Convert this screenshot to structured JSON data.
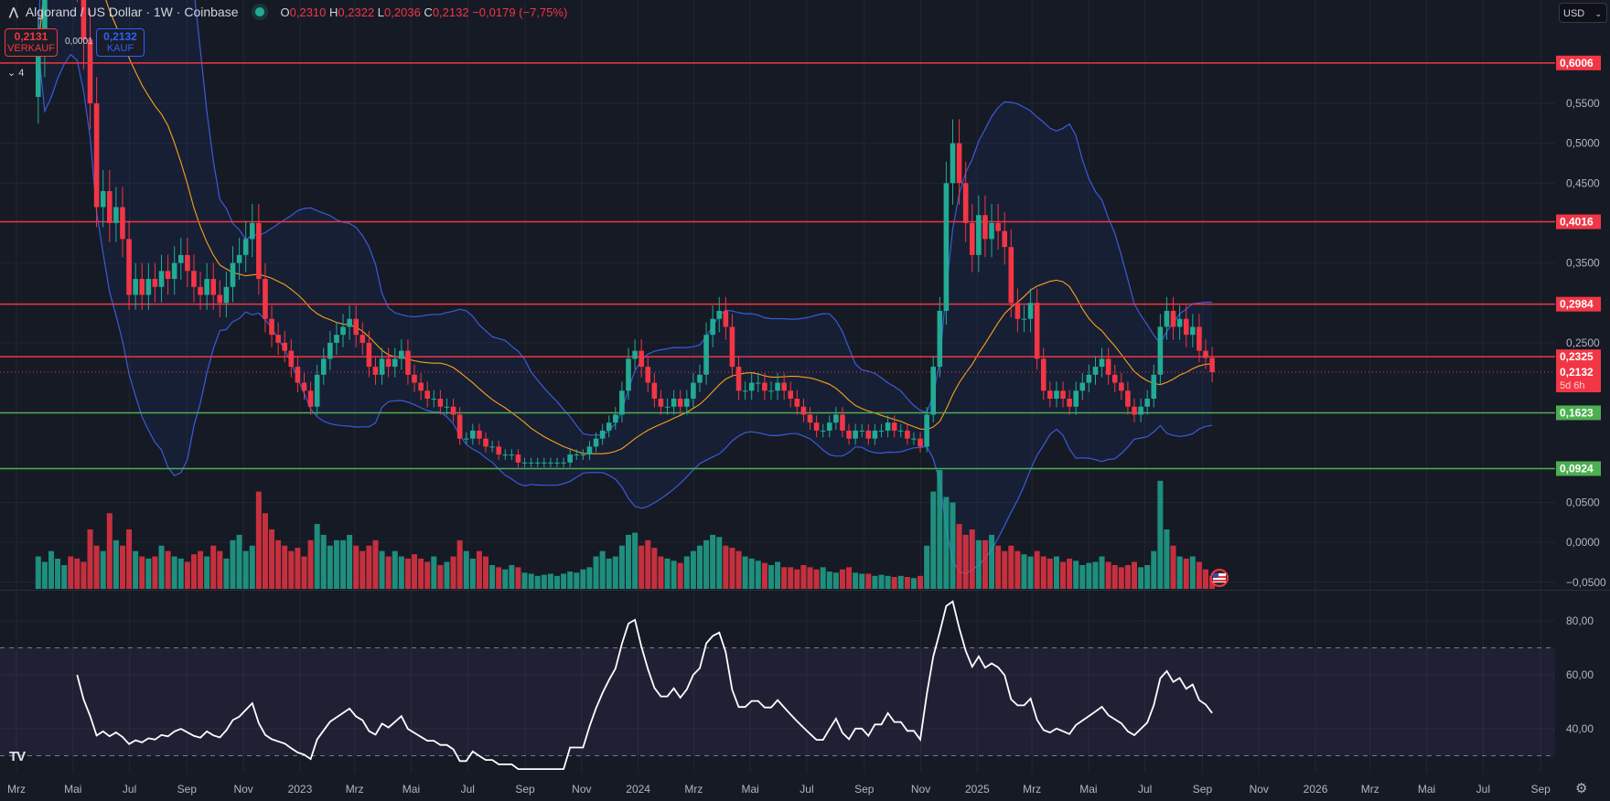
{
  "header": {
    "title": "Algorand / US Dollar · 1W · Coinbase",
    "logo_icon": "algorand-logo",
    "market_status": "open",
    "ohlc": {
      "o_label": "O",
      "o": "0,2310",
      "h_label": "H",
      "h": "0,2322",
      "l_label": "L",
      "l": "0,2036",
      "c_label": "C",
      "c": "0,2132",
      "change": "−0,0179 (−7,75%)"
    },
    "sell": {
      "value": "0,2131",
      "label": "VERKAUF"
    },
    "spread": "0,0001",
    "buy": {
      "value": "0,2132",
      "label": "KAUF"
    },
    "indicators_collapsed": "⌄ 4"
  },
  "currency_button": {
    "label": "USD",
    "chevron": "⌄"
  },
  "colors": {
    "background": "#161a25",
    "up": "#22ab94",
    "down": "#f23645",
    "resistance": "#f23645",
    "support": "#4caf50",
    "bollinger": "#3a5bd9",
    "sma": "#f7a21b",
    "rsi": "#ffffff"
  },
  "price_axis": {
    "ticks": [
      {
        "value": 0.55,
        "label": "0,5500"
      },
      {
        "value": 0.5,
        "label": "0,5000"
      },
      {
        "value": 0.45,
        "label": "0,4500"
      },
      {
        "value": 0.35,
        "label": "0,3500"
      },
      {
        "value": 0.25,
        "label": "0,2500"
      },
      {
        "value": 0.05,
        "label": "0,0500"
      },
      {
        "value": 0.0,
        "label": "0,0000"
      },
      {
        "value": -0.05,
        "label": "−0,0500"
      }
    ],
    "levels": [
      {
        "value": 0.6006,
        "label": "0,6006",
        "kind": "resistance"
      },
      {
        "value": 0.4016,
        "label": "0,4016",
        "kind": "resistance"
      },
      {
        "value": 0.2984,
        "label": "0,2984",
        "kind": "resistance"
      },
      {
        "value": 0.2325,
        "label": "0,2325",
        "kind": "resistance"
      },
      {
        "value": 0.1623,
        "label": "0,1623",
        "kind": "support"
      },
      {
        "value": 0.0924,
        "label": "0,0924",
        "kind": "support"
      }
    ],
    "last_price": {
      "value": 0.2132,
      "label": "0,2132",
      "countdown": "5d 6h"
    }
  },
  "rsi_axis": {
    "ticks": [
      {
        "value": 80,
        "label": "80,00"
      },
      {
        "value": 60,
        "label": "60,00"
      },
      {
        "value": 40,
        "label": "40,00"
      }
    ],
    "band": [
      30,
      70
    ]
  },
  "time_axis": [
    {
      "label": "Mrz",
      "date": "2022-03-01"
    },
    {
      "label": "Mai",
      "date": "2022-05-01"
    },
    {
      "label": "Jul",
      "date": "2022-07-01"
    },
    {
      "label": "Sep",
      "date": "2022-09-01"
    },
    {
      "label": "Nov",
      "date": "2022-11-01"
    },
    {
      "label": "2023",
      "date": "2023-01-01"
    },
    {
      "label": "Mrz",
      "date": "2023-03-01"
    },
    {
      "label": "Mai",
      "date": "2023-05-01"
    },
    {
      "label": "Jul",
      "date": "2023-07-01"
    },
    {
      "label": "Sep",
      "date": "2023-09-01"
    },
    {
      "label": "Nov",
      "date": "2023-11-01"
    },
    {
      "label": "2024",
      "date": "2024-01-01"
    },
    {
      "label": "Mrz",
      "date": "2024-03-01"
    },
    {
      "label": "Mai",
      "date": "2024-05-01"
    },
    {
      "label": "Jul",
      "date": "2024-07-01"
    },
    {
      "label": "Sep",
      "date": "2024-09-01"
    },
    {
      "label": "Nov",
      "date": "2024-11-01"
    },
    {
      "label": "2025",
      "date": "2025-01-01"
    },
    {
      "label": "Mrz",
      "date": "2025-03-01"
    },
    {
      "label": "Mai",
      "date": "2025-05-01"
    },
    {
      "label": "Jul",
      "date": "2025-07-01"
    },
    {
      "label": "Sep",
      "date": "2025-09-01"
    },
    {
      "label": "Nov",
      "date": "2025-11-01"
    },
    {
      "label": "2026",
      "date": "2026-01-01"
    },
    {
      "label": "Mrz",
      "date": "2026-03-01"
    },
    {
      "label": "Mai",
      "date": "2026-05-01"
    },
    {
      "label": "Jul",
      "date": "2026-07-01"
    },
    {
      "label": "Sep",
      "date": "2026-09-01"
    }
  ],
  "chart_data": {
    "type": "candlestick",
    "interval": "1W",
    "first_candle": "2022-03-21",
    "overlays": [
      "Bollinger Bands (20, 2)",
      "SMA 20",
      "Volume",
      "RSI 14"
    ],
    "closes": [
      0.62,
      0.78,
      0.85,
      0.88,
      0.92,
      0.78,
      0.72,
      0.63,
      0.55,
      0.42,
      0.44,
      0.4,
      0.42,
      0.38,
      0.31,
      0.33,
      0.31,
      0.33,
      0.32,
      0.34,
      0.33,
      0.35,
      0.36,
      0.34,
      0.32,
      0.31,
      0.33,
      0.31,
      0.3,
      0.32,
      0.35,
      0.36,
      0.38,
      0.4,
      0.33,
      0.28,
      0.26,
      0.25,
      0.24,
      0.22,
      0.2,
      0.19,
      0.17,
      0.21,
      0.23,
      0.25,
      0.26,
      0.27,
      0.28,
      0.26,
      0.25,
      0.22,
      0.21,
      0.23,
      0.22,
      0.23,
      0.24,
      0.21,
      0.2,
      0.19,
      0.18,
      0.18,
      0.17,
      0.17,
      0.16,
      0.13,
      0.13,
      0.14,
      0.13,
      0.12,
      0.12,
      0.11,
      0.11,
      0.11,
      0.1,
      0.1,
      0.1,
      0.1,
      0.1,
      0.1,
      0.1,
      0.1,
      0.11,
      0.11,
      0.11,
      0.12,
      0.13,
      0.14,
      0.15,
      0.16,
      0.19,
      0.23,
      0.24,
      0.22,
      0.2,
      0.18,
      0.17,
      0.17,
      0.18,
      0.17,
      0.18,
      0.2,
      0.21,
      0.26,
      0.28,
      0.29,
      0.27,
      0.22,
      0.19,
      0.19,
      0.2,
      0.2,
      0.19,
      0.19,
      0.2,
      0.19,
      0.18,
      0.17,
      0.16,
      0.15,
      0.14,
      0.14,
      0.15,
      0.16,
      0.14,
      0.13,
      0.14,
      0.14,
      0.13,
      0.14,
      0.14,
      0.15,
      0.14,
      0.14,
      0.13,
      0.13,
      0.12,
      0.16,
      0.22,
      0.29,
      0.45,
      0.5,
      0.45,
      0.4,
      0.36,
      0.41,
      0.38,
      0.4,
      0.39,
      0.37,
      0.3,
      0.28,
      0.28,
      0.3,
      0.23,
      0.19,
      0.18,
      0.19,
      0.18,
      0.17,
      0.19,
      0.2,
      0.21,
      0.22,
      0.23,
      0.21,
      0.2,
      0.19,
      0.17,
      0.16,
      0.17,
      0.18,
      0.21,
      0.27,
      0.29,
      0.27,
      0.28,
      0.26,
      0.27,
      0.24,
      0.231,
      0.2132
    ],
    "volumes": [
      30,
      25,
      35,
      28,
      22,
      30,
      28,
      25,
      55,
      40,
      35,
      70,
      45,
      40,
      55,
      35,
      30,
      28,
      30,
      40,
      35,
      30,
      28,
      25,
      32,
      35,
      30,
      40,
      35,
      28,
      45,
      50,
      35,
      40,
      90,
      70,
      55,
      45,
      40,
      35,
      38,
      30,
      45,
      60,
      50,
      40,
      45,
      45,
      50,
      40,
      35,
      40,
      45,
      35,
      30,
      35,
      30,
      28,
      32,
      28,
      25,
      30,
      22,
      25,
      30,
      45,
      35,
      28,
      35,
      30,
      22,
      20,
      18,
      22,
      20,
      15,
      14,
      12,
      13,
      14,
      12,
      14,
      16,
      15,
      18,
      20,
      30,
      35,
      28,
      30,
      40,
      50,
      52,
      40,
      45,
      38,
      30,
      28,
      26,
      24,
      30,
      35,
      40,
      45,
      50,
      48,
      40,
      38,
      35,
      30,
      28,
      26,
      24,
      22,
      25,
      20,
      20,
      18,
      22,
      20,
      18,
      20,
      16,
      15,
      18,
      20,
      15,
      14,
      14,
      12,
      13,
      12,
      11,
      12,
      11,
      10,
      12,
      40,
      90,
      110,
      85,
      80,
      60,
      50,
      55,
      45,
      45,
      50,
      40,
      35,
      40,
      35,
      32,
      30,
      35,
      30,
      28,
      30,
      25,
      28,
      26,
      22,
      24,
      25,
      30,
      25,
      22,
      20,
      22,
      25,
      20,
      22,
      35,
      100,
      55,
      40,
      30,
      28,
      30,
      25,
      18,
      12
    ]
  }
}
